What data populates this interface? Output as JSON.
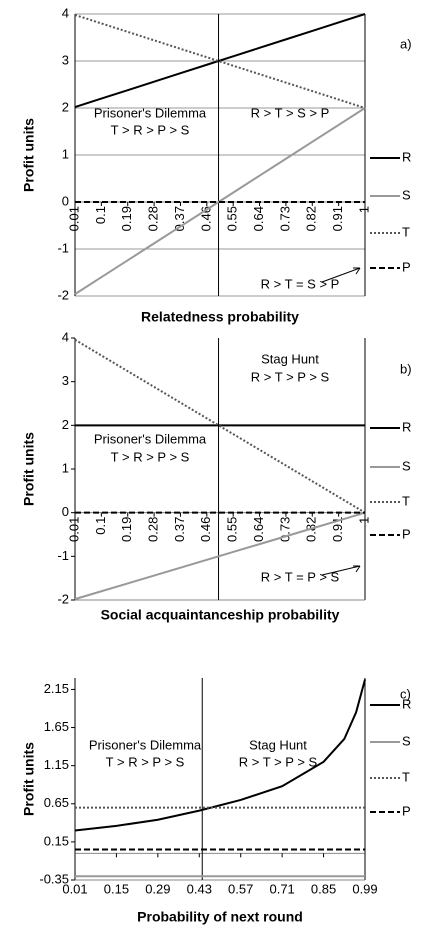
{
  "chart_data": [
    {
      "type": "line",
      "label": "a)",
      "ylabel": "Profit units",
      "xlabel": "Relatedness probability",
      "x": [
        0.01,
        0.1,
        0.19,
        0.28,
        0.37,
        0.46,
        0.55,
        0.64,
        0.73,
        0.82,
        0.91,
        1
      ],
      "xlim": [
        0.01,
        1
      ],
      "xticks": [
        0.01,
        0.1,
        0.19,
        0.28,
        0.37,
        0.46,
        0.55,
        0.64,
        0.73,
        0.82,
        0.91,
        1
      ],
      "ylim": [
        -2,
        4
      ],
      "yticks": [
        -2,
        -1,
        0,
        1,
        2,
        3,
        4
      ],
      "grid": true,
      "divider": 0.5,
      "series": [
        {
          "name": "R",
          "color": "#000000",
          "style": "solid",
          "values": [
            2.02,
            2.2,
            2.38,
            2.56,
            2.74,
            2.92,
            3.1,
            3.28,
            3.46,
            3.64,
            3.82,
            4
          ]
        },
        {
          "name": "S",
          "color": "#999999",
          "style": "solid",
          "values": [
            -1.96,
            -1.6,
            -1.24,
            -0.88,
            -0.52,
            -0.16,
            0.2,
            0.56,
            0.92,
            1.28,
            1.64,
            2
          ]
        },
        {
          "name": "T",
          "color": "#555555",
          "style": "dotted",
          "values": [
            3.98,
            3.8,
            3.62,
            3.44,
            3.26,
            3.08,
            2.9,
            2.72,
            2.54,
            2.36,
            2.18,
            2
          ]
        },
        {
          "name": "P",
          "color": "#000000",
          "style": "dashed",
          "values": [
            0,
            0,
            0,
            0,
            0,
            0,
            0,
            0,
            0,
            0,
            0,
            0
          ]
        }
      ],
      "annotations": [
        "Prisoner's Dilemma",
        "T > R > P > S",
        "R > T > S > P",
        "R > T = S > P"
      ]
    },
    {
      "type": "line",
      "label": "b)",
      "ylabel": "Profit units",
      "xlabel": "Social acquaintanceship probability",
      "x": [
        0.01,
        0.1,
        0.19,
        0.28,
        0.37,
        0.46,
        0.55,
        0.64,
        0.73,
        0.82,
        0.91,
        1
      ],
      "xlim": [
        0.01,
        1
      ],
      "xticks": [
        0.01,
        0.1,
        0.19,
        0.28,
        0.37,
        0.46,
        0.55,
        0.64,
        0.73,
        0.82,
        0.91,
        1
      ],
      "ylim": [
        -2,
        4
      ],
      "yticks": [
        -2,
        -1,
        0,
        1,
        2,
        3,
        4
      ],
      "grid": false,
      "divider": 0.5,
      "series": [
        {
          "name": "R",
          "color": "#000000",
          "style": "solid",
          "values": [
            2,
            2,
            2,
            2,
            2,
            2,
            2,
            2,
            2,
            2,
            2,
            2
          ]
        },
        {
          "name": "S",
          "color": "#999999",
          "style": "solid",
          "values": [
            -1.98,
            -1.8,
            -1.62,
            -1.44,
            -1.26,
            -1.08,
            -0.9,
            -0.72,
            -0.54,
            -0.36,
            -0.18,
            0
          ]
        },
        {
          "name": "T",
          "color": "#555555",
          "style": "dotted",
          "values": [
            3.96,
            3.6,
            3.24,
            2.88,
            2.52,
            2.16,
            1.8,
            1.44,
            1.08,
            0.72,
            0.36,
            0
          ]
        },
        {
          "name": "P",
          "color": "#000000",
          "style": "dashed",
          "values": [
            0,
            0,
            0,
            0,
            0,
            0,
            0,
            0,
            0,
            0,
            0,
            0
          ]
        }
      ],
      "annotations": [
        "Stag Hunt",
        "R > T > P > S",
        "Prisoner's Dilemma",
        "T > R > P > S",
        "R > T = P > S"
      ]
    },
    {
      "type": "line",
      "label": "c)",
      "ylabel": "Profit units",
      "xlabel": "Probability of next round",
      "x": [
        0.01,
        0.15,
        0.29,
        0.43,
        0.57,
        0.71,
        0.85,
        0.92,
        0.96,
        0.99
      ],
      "xlim": [
        0.01,
        0.99
      ],
      "xticks": [
        0.01,
        0.15,
        0.29,
        0.43,
        0.57,
        0.71,
        0.85,
        0.99
      ],
      "ylim": [
        -0.35,
        2.3
      ],
      "yticks": [
        -0.35,
        0.15,
        0.65,
        1.15,
        1.65,
        2.15
      ],
      "grid": false,
      "divider": 0.44,
      "series": [
        {
          "name": "R",
          "color": "#000000",
          "style": "solid",
          "values": [
            0.3,
            0.36,
            0.44,
            0.56,
            0.7,
            0.88,
            1.2,
            1.5,
            1.85,
            2.28
          ]
        },
        {
          "name": "S",
          "color": "#999999",
          "style": "solid",
          "values": [
            -0.3,
            -0.3,
            -0.3,
            -0.3,
            -0.3,
            -0.3,
            -0.3,
            -0.3,
            -0.3,
            -0.3
          ]
        },
        {
          "name": "T",
          "color": "#555555",
          "style": "dotted",
          "values": [
            0.6,
            0.6,
            0.6,
            0.6,
            0.6,
            0.6,
            0.6,
            0.6,
            0.6,
            0.6
          ]
        },
        {
          "name": "P",
          "color": "#000000",
          "style": "dashed",
          "values": [
            0.05,
            0.05,
            0.05,
            0.05,
            0.05,
            0.05,
            0.05,
            0.05,
            0.05,
            0.05
          ]
        }
      ],
      "annotations": [
        "Prisoner's Dilemma",
        "T > R > P > S",
        "Stag Hunt",
        "R > T > P > S"
      ]
    }
  ]
}
